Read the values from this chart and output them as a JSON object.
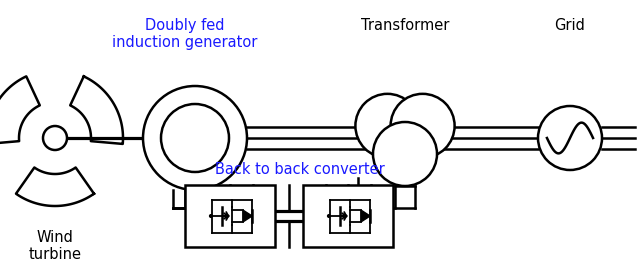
{
  "bg_color": "#ffffff",
  "line_color": "#000000",
  "text_color": "#000000",
  "text_color_label": "#1a1aff",
  "label_generator": "Doubly fed\ninduction generator",
  "label_transformer": "Transformer",
  "label_grid": "Grid",
  "label_wind": "Wind\nturbine",
  "label_converter": "Back to back converter",
  "fig_w": 6.4,
  "fig_h": 2.7,
  "dpi": 100
}
